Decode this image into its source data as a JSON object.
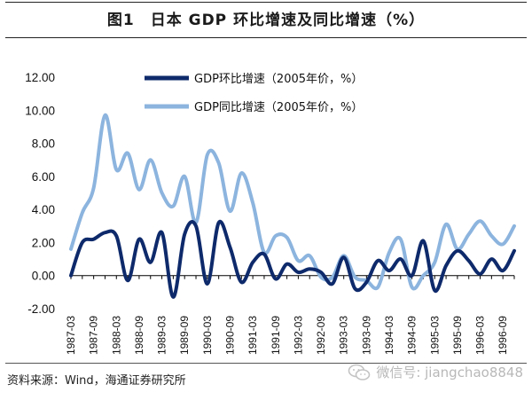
{
  "page": {
    "title": "图1　日本 GDP 环比增速及同比增速（%）",
    "source": "资料来源：Wind，海通证券研究所",
    "watermark": "微信号: jiangchao8848"
  },
  "colors": {
    "qoq": "#0e2a6b",
    "yoy": "#8cb4de"
  },
  "chart_data": {
    "type": "line",
    "title": "图1　日本 GDP 环比增速及同比增速（%）",
    "ylim": [
      -2,
      12
    ],
    "yticks": [
      "12.00",
      "10.00",
      "8.00",
      "6.00",
      "4.00",
      "2.00",
      "0.00",
      "-2.00"
    ],
    "xticks": [
      "1987-03",
      "1987-09",
      "1988-03",
      "1988-09",
      "1989-03",
      "1989-09",
      "1990-03",
      "1990-09",
      "1991-03",
      "1991-09",
      "1992-03",
      "1992-09",
      "1993-03",
      "1993-09",
      "1994-03",
      "1994-09",
      "1995-03",
      "1995-09",
      "1996-03",
      "1996-09"
    ],
    "legend_position": "top",
    "grid": false,
    "x": [
      "1987-03",
      "1987-06",
      "1987-09",
      "1987-12",
      "1988-03",
      "1988-06",
      "1988-09",
      "1988-12",
      "1989-03",
      "1989-06",
      "1989-09",
      "1989-12",
      "1990-03",
      "1990-06",
      "1990-09",
      "1990-12",
      "1991-03",
      "1991-06",
      "1991-09",
      "1991-12",
      "1992-03",
      "1992-06",
      "1992-09",
      "1992-12",
      "1993-03",
      "1993-06",
      "1993-09",
      "1993-12",
      "1994-03",
      "1994-06",
      "1994-09",
      "1994-12",
      "1995-03",
      "1995-06",
      "1995-09",
      "1995-12",
      "1996-03",
      "1996-06",
      "1996-09",
      "1996-12"
    ],
    "series": [
      {
        "name": "GDP环比增速（2005年价，%）",
        "values": [
          0.0,
          2.0,
          2.2,
          2.6,
          2.4,
          -0.3,
          2.2,
          0.8,
          2.6,
          -1.3,
          2.5,
          3.0,
          -0.5,
          3.2,
          1.7,
          -0.4,
          0.8,
          1.3,
          -0.2,
          0.7,
          0.2,
          0.4,
          0.2,
          -0.5,
          1.1,
          -0.8,
          -0.4,
          0.9,
          0.3,
          1.0,
          0.0,
          2.1,
          -0.9,
          0.6,
          1.5,
          0.9,
          0.1,
          1.0,
          0.3,
          1.5
        ]
      },
      {
        "name": "GDP同比增速（2005年价，%）",
        "values": [
          1.6,
          3.8,
          5.3,
          9.7,
          6.4,
          7.4,
          5.2,
          7.0,
          5.0,
          4.2,
          6.0,
          3.2,
          7.3,
          6.8,
          3.9,
          6.2,
          4.4,
          1.4,
          2.4,
          2.3,
          0.9,
          1.2,
          -0.1,
          -0.1,
          1.2,
          -0.1,
          -0.3,
          -0.7,
          1.4,
          2.2,
          -0.7,
          0.0,
          0.8,
          3.1,
          1.6,
          2.5,
          3.3,
          2.4,
          1.9,
          3.0
        ]
      }
    ]
  }
}
